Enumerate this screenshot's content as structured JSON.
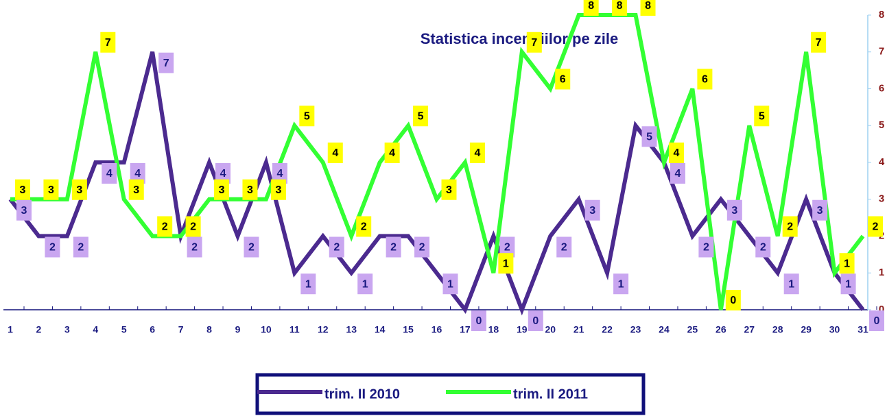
{
  "chart_data": {
    "type": "line",
    "title": "Statistica incendiilor pe zile",
    "categories": [
      "1",
      "2",
      "3",
      "4",
      "5",
      "6",
      "7",
      "8",
      "9",
      "10",
      "11",
      "12",
      "13",
      "14",
      "15",
      "16",
      "17",
      "18",
      "19",
      "20",
      "21",
      "22",
      "23",
      "24",
      "25",
      "26",
      "27",
      "28",
      "29",
      "30",
      "31"
    ],
    "series": [
      {
        "name": "trim. II 2010",
        "color": "#4b2a8f",
        "label_color": "#c9a6f0",
        "values": [
          3,
          2,
          2,
          4,
          4,
          7,
          2,
          4,
          2,
          4,
          1,
          2,
          1,
          2,
          2,
          1,
          0,
          2,
          0,
          2,
          3,
          1,
          5,
          4,
          2,
          3,
          2,
          1,
          3,
          1,
          0
        ]
      },
      {
        "name": "trim. II 2011",
        "color": "#33ff33",
        "label_color": "#ffff00",
        "values": [
          3,
          3,
          3,
          7,
          3,
          2,
          2,
          3,
          3,
          3,
          5,
          4,
          2,
          4,
          5,
          3,
          4,
          1,
          7,
          6,
          8,
          8,
          8,
          4,
          6,
          0,
          5,
          2,
          7,
          1,
          2
        ]
      }
    ],
    "ylim": [
      0,
      8
    ],
    "yticks": [
      0,
      1,
      2,
      3,
      4,
      5,
      6,
      7,
      8
    ],
    "legend": "bottom"
  }
}
